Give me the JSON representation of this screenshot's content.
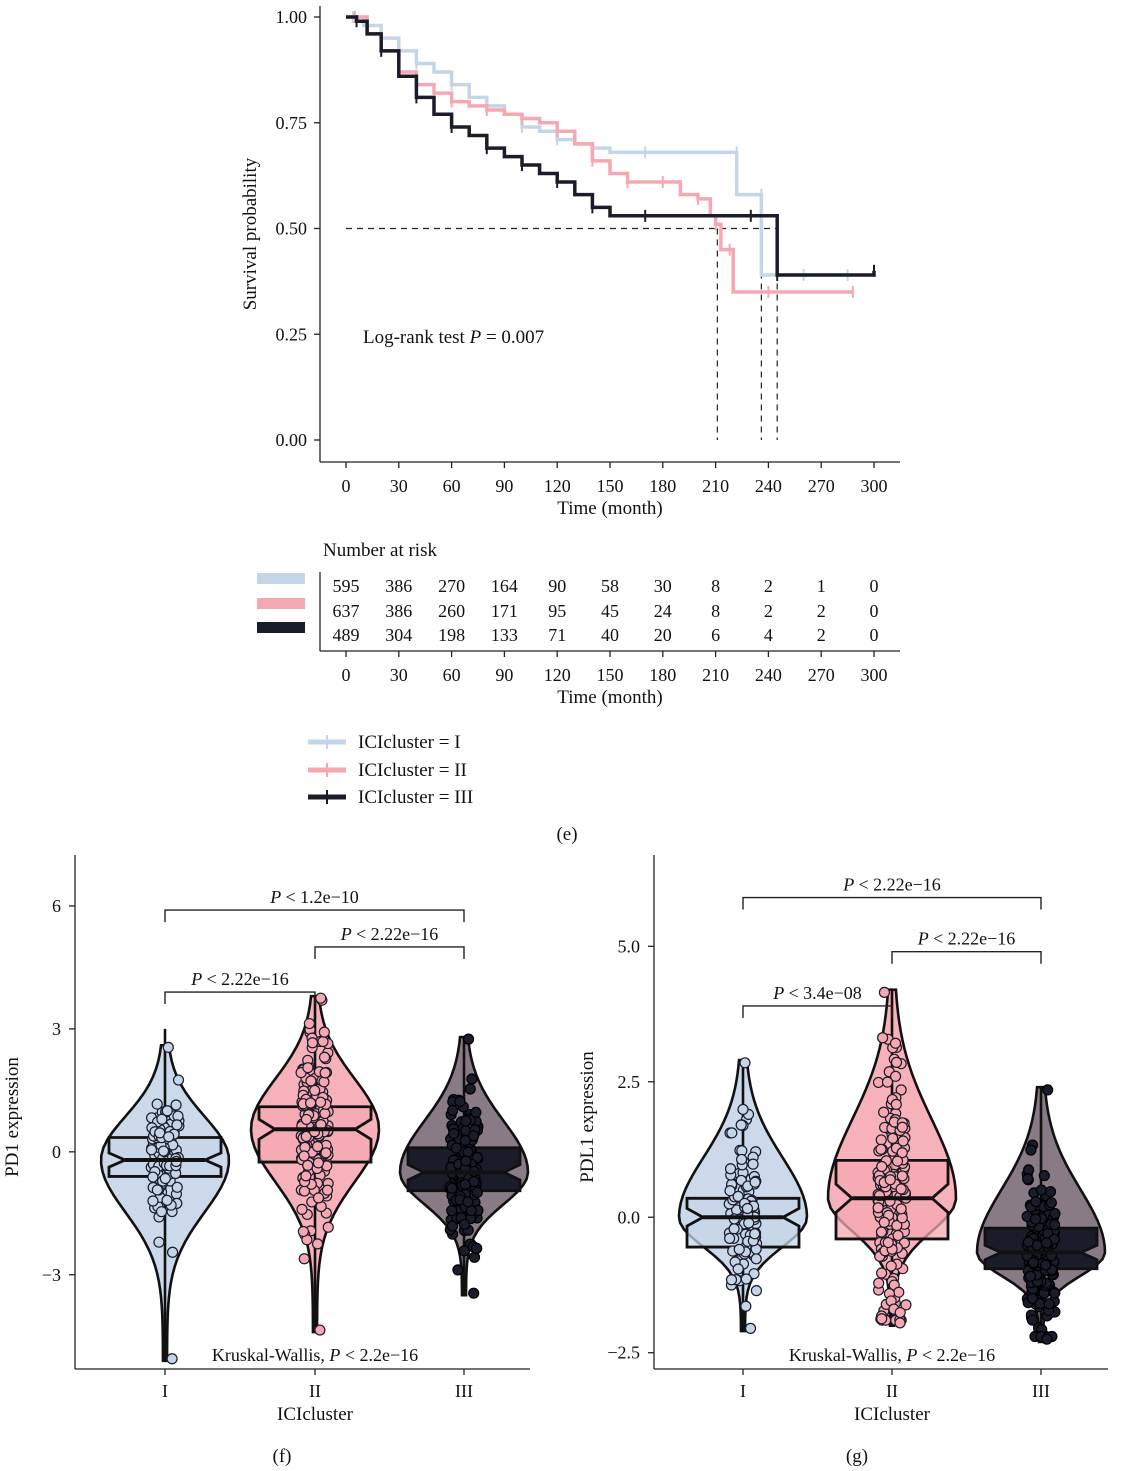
{
  "colors": {
    "I": "#c5d5e8",
    "II": "#f6a8b2",
    "III": "#1b1c2a",
    "III_violin": "#7c6d79"
  },
  "chart_data": [
    {
      "panel": "(e)",
      "type": "line",
      "subtype": "kaplan-meier",
      "xlabel": "Time (month)",
      "ylabel": "Survival probability",
      "xlim": [
        0,
        300
      ],
      "ylim": [
        0,
        1
      ],
      "x_ticks": [
        "0",
        "30",
        "60",
        "90",
        "120",
        "150",
        "180",
        "210",
        "240",
        "270",
        "300"
      ],
      "y_ticks": [
        "0.00",
        "0.25",
        "0.50",
        "0.75",
        "1.00"
      ],
      "annotation_prefix": "Log-rank test ",
      "annotation_p": "P",
      "annotation_value": " = 0.007",
      "median_line": 0.5,
      "medians": [
        236,
        211,
        245
      ],
      "series": [
        {
          "name": "ICIcluster = I",
          "color": "#c5d5e8",
          "points": [
            [
              0,
              1.0
            ],
            [
              4,
              1.0
            ],
            [
              10,
              0.98
            ],
            [
              20,
              0.95
            ],
            [
              30,
              0.92
            ],
            [
              40,
              0.89
            ],
            [
              50,
              0.87
            ],
            [
              60,
              0.84
            ],
            [
              70,
              0.81
            ],
            [
              80,
              0.79
            ],
            [
              90,
              0.77
            ],
            [
              100,
              0.74
            ],
            [
              110,
              0.73
            ],
            [
              120,
              0.71
            ],
            [
              130,
              0.7
            ],
            [
              140,
              0.69
            ],
            [
              150,
              0.68
            ],
            [
              170,
              0.68
            ],
            [
              200,
              0.68
            ],
            [
              222,
              0.68
            ],
            [
              222,
              0.58
            ],
            [
              236,
              0.58
            ],
            [
              236,
              0.39
            ],
            [
              260,
              0.39
            ],
            [
              285,
              0.39
            ]
          ]
        },
        {
          "name": "ICIcluster = II",
          "color": "#f6a8b2",
          "points": [
            [
              0,
              1.0
            ],
            [
              5,
              1.0
            ],
            [
              12,
              0.96
            ],
            [
              20,
              0.92
            ],
            [
              30,
              0.87
            ],
            [
              40,
              0.84
            ],
            [
              50,
              0.82
            ],
            [
              60,
              0.8
            ],
            [
              70,
              0.79
            ],
            [
              80,
              0.78
            ],
            [
              90,
              0.77
            ],
            [
              100,
              0.76
            ],
            [
              110,
              0.75
            ],
            [
              120,
              0.73
            ],
            [
              130,
              0.7
            ],
            [
              140,
              0.66
            ],
            [
              150,
              0.63
            ],
            [
              160,
              0.61
            ],
            [
              170,
              0.61
            ],
            [
              180,
              0.61
            ],
            [
              190,
              0.58
            ],
            [
              200,
              0.57
            ],
            [
              207,
              0.53
            ],
            [
              210,
              0.51
            ],
            [
              213,
              0.45
            ],
            [
              218,
              0.45
            ],
            [
              220,
              0.35
            ],
            [
              240,
              0.35
            ],
            [
              260,
              0.35
            ],
            [
              288,
              0.35
            ]
          ]
        },
        {
          "name": "ICIcluster = III",
          "color": "#1b1c2a",
          "points": [
            [
              0,
              1.0
            ],
            [
              6,
              0.99
            ],
            [
              12,
              0.96
            ],
            [
              20,
              0.92
            ],
            [
              30,
              0.86
            ],
            [
              40,
              0.81
            ],
            [
              50,
              0.77
            ],
            [
              60,
              0.74
            ],
            [
              70,
              0.72
            ],
            [
              80,
              0.69
            ],
            [
              90,
              0.67
            ],
            [
              100,
              0.65
            ],
            [
              110,
              0.63
            ],
            [
              120,
              0.61
            ],
            [
              130,
              0.58
            ],
            [
              140,
              0.55
            ],
            [
              150,
              0.53
            ],
            [
              170,
              0.53
            ],
            [
              200,
              0.53
            ],
            [
              230,
              0.53
            ],
            [
              245,
              0.53
            ],
            [
              245,
              0.39
            ],
            [
              270,
              0.39
            ],
            [
              300,
              0.4
            ]
          ]
        }
      ]
    },
    {
      "panel": "(e) risk table",
      "type": "table",
      "title": "Number at risk",
      "xlabel": "Time (month)",
      "columns": [
        0,
        30,
        60,
        90,
        120,
        150,
        180,
        210,
        240,
        270,
        300
      ],
      "rows": [
        {
          "name": "ICIcluster = I",
          "color": "#c5d5e8",
          "values": [
            595,
            386,
            270,
            164,
            90,
            58,
            30,
            8,
            2,
            1,
            0
          ]
        },
        {
          "name": "ICIcluster = II",
          "color": "#f6a8b2",
          "values": [
            637,
            386,
            260,
            171,
            95,
            45,
            24,
            8,
            2,
            2,
            0
          ]
        },
        {
          "name": "ICIcluster = III",
          "color": "#1b1c2a",
          "values": [
            489,
            304,
            198,
            133,
            71,
            40,
            20,
            6,
            4,
            2,
            0
          ]
        }
      ]
    },
    {
      "panel": "(f)",
      "type": "box",
      "xlabel": "ICIcluster",
      "ylabel": "PD1 expression",
      "ylim": [
        -5.3,
        7.0
      ],
      "y_ticks": [
        -3,
        0,
        3,
        6
      ],
      "y_tick_labels": [
        "−3",
        "0",
        "3",
        "6"
      ],
      "categories": [
        "I",
        "II",
        "III"
      ],
      "boxes": [
        {
          "q1": -0.6,
          "median": -0.2,
          "q3": 0.35,
          "whisker": [
            -5.1,
            3.0
          ],
          "violin_top": 2.6,
          "violin_bottom": -5.1
        },
        {
          "q1": -0.25,
          "median": 0.55,
          "q3": 1.1,
          "whisker": [
            -4.4,
            3.8
          ],
          "violin_top": 3.8,
          "violin_bottom": -4.4
        },
        {
          "q1": -0.95,
          "median": -0.5,
          "q3": 0.1,
          "whisker": [
            -3.5,
            2.8
          ],
          "violin_top": 2.8,
          "violin_bottom": -3.5
        }
      ],
      "comparisons": [
        {
          "from": "I",
          "to": "II",
          "label": "< 2.22e−16",
          "y": 3.9
        },
        {
          "from": "II",
          "to": "III",
          "label": "< 2.22e−16",
          "y": 5.0
        },
        {
          "from": "I",
          "to": "III",
          "label": "< 1.2e−10",
          "y": 5.9
        }
      ],
      "test_prefix": "Kruskal-Wallis, ",
      "test_p": "P",
      "test_value": " < 2.2e−16"
    },
    {
      "panel": "(g)",
      "type": "box",
      "xlabel": "ICIcluster",
      "ylabel": "PDL1 expression",
      "ylim": [
        -2.8,
        6.5
      ],
      "y_ticks": [
        -2.5,
        0.0,
        2.5,
        5.0
      ],
      "y_tick_labels": [
        "−2.5",
        "0.0",
        "2.5",
        "5.0"
      ],
      "categories": [
        "I",
        "II",
        "III"
      ],
      "boxes": [
        {
          "q1": -0.55,
          "median": 0.0,
          "q3": 0.35,
          "whisker": [
            -2.1,
            2.9
          ],
          "violin_top": 2.9,
          "violin_bottom": -2.1
        },
        {
          "q1": -0.4,
          "median": 0.35,
          "q3": 1.05,
          "whisker": [
            -2.0,
            4.2
          ],
          "violin_top": 4.2,
          "violin_bottom": -2.0
        },
        {
          "q1": -0.95,
          "median": -0.65,
          "q3": -0.2,
          "whisker": [
            -2.3,
            2.4
          ],
          "violin_top": 2.4,
          "violin_bottom": -2.3
        }
      ],
      "comparisons": [
        {
          "from": "I",
          "to": "II",
          "label": "< 3.4e−08",
          "y": 3.9
        },
        {
          "from": "II",
          "to": "III",
          "label": "< 2.22e−16",
          "y": 4.9
        },
        {
          "from": "I",
          "to": "III",
          "label": "< 2.22e−16",
          "y": 5.9
        }
      ],
      "test_prefix": "Kruskal-Wallis, ",
      "test_p": "P",
      "test_value": " < 2.2e−16"
    }
  ],
  "legend": {
    "entries": [
      "ICIcluster = I",
      "ICIcluster = II",
      "ICIcluster = III"
    ]
  },
  "panel_labels": {
    "e": "(e)",
    "f": "(f)",
    "g": "(g)"
  }
}
